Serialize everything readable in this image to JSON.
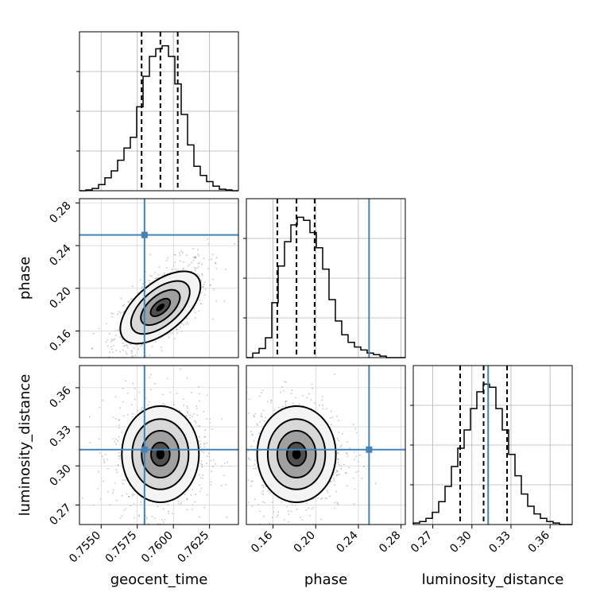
{
  "chart_data": {
    "type": "corner",
    "parameters": [
      "geocent_time",
      "phase",
      "luminosity_distance"
    ],
    "labels": {
      "geocent_time": "geocent_time",
      "phase": "phase",
      "luminosity_distance": "luminosity_distance"
    },
    "ranges": {
      "geocent_time": [
        0.7535,
        0.7645
      ],
      "phase": [
        0.135,
        0.284
      ],
      "luminosity_distance": [
        0.255,
        0.377
      ]
    },
    "ticks": {
      "geocent_time": [
        "0.7550",
        "0.7575",
        "0.7600",
        "0.7625"
      ],
      "phase": [
        "0.16",
        "0.20",
        "0.24",
        "0.28"
      ],
      "luminosity_distance": [
        "0.27",
        "0.30",
        "0.33",
        "0.36"
      ]
    },
    "truths": {
      "geocent_time": 0.758,
      "phase": 0.25,
      "luminosity_distance": 0.3125
    },
    "quantiles": {
      "geocent_time": [
        0.7578,
        0.7591,
        0.7603
      ],
      "phase": [
        0.164,
        0.182,
        0.199
      ],
      "luminosity_distance": [
        0.291,
        0.309,
        0.327
      ]
    },
    "histograms": {
      "geocent_time": [
        0,
        0.005,
        0.015,
        0.04,
        0.085,
        0.13,
        0.2,
        0.28,
        0.35,
        0.55,
        0.75,
        0.88,
        0.93,
        0.95,
        0.88,
        0.7,
        0.5,
        0.3,
        0.16,
        0.1,
        0.06,
        0.03,
        0.01,
        0.005,
        0
      ],
      "phase": [
        0,
        0.03,
        0.06,
        0.13,
        0.36,
        0.6,
        0.76,
        0.87,
        0.92,
        0.9,
        0.82,
        0.72,
        0.58,
        0.38,
        0.24,
        0.15,
        0.1,
        0.07,
        0.05,
        0.03,
        0.02,
        0.01,
        0,
        0,
        0
      ],
      "luminosity_distance": [
        0.01,
        0.02,
        0.04,
        0.08,
        0.15,
        0.25,
        0.38,
        0.5,
        0.62,
        0.76,
        0.87,
        0.92,
        0.9,
        0.76,
        0.62,
        0.46,
        0.32,
        0.2,
        0.12,
        0.07,
        0.04,
        0.02,
        0.01,
        0,
        0
      ]
    },
    "grid": true,
    "truth_color": "#4682b4",
    "hist_color": "#000000"
  }
}
